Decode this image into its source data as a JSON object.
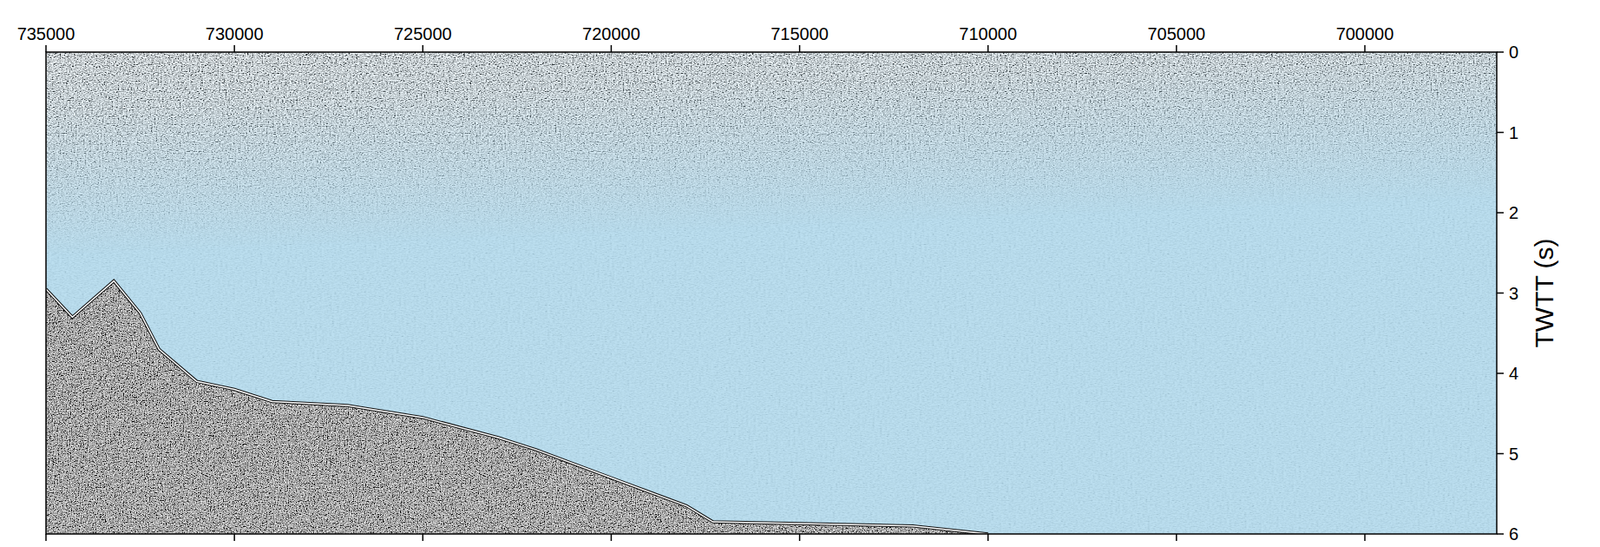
{
  "chart_data": {
    "type": "section",
    "y_label": "TWTT (s)",
    "xlim": [
      735000,
      696500
    ],
    "ylim": [
      0,
      6
    ],
    "xticks": [
      735000,
      730000,
      725000,
      720000,
      715000,
      710000,
      705000,
      700000
    ],
    "yticks": [
      0,
      1,
      2,
      3,
      4,
      5,
      6
    ],
    "x": [
      735000,
      734300,
      733200,
      732500,
      732000,
      731000,
      730000,
      729000,
      727000,
      725000,
      723000,
      722000,
      720000,
      718000,
      717300,
      715000,
      712000,
      710000
    ],
    "values": [
      2.95,
      3.3,
      2.85,
      3.25,
      3.7,
      4.1,
      4.2,
      4.35,
      4.4,
      4.55,
      4.8,
      4.95,
      5.3,
      5.65,
      5.85,
      5.87,
      5.9,
      6.0
    ],
    "tick_labels": true,
    "grid": false
  }
}
